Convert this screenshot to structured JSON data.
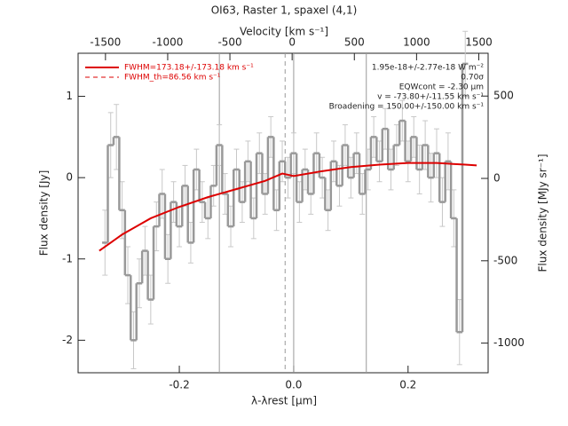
{
  "chart_data": {
    "type": "line",
    "title": "OI63, Raster 1, spaxel (4,1)",
    "x_label": "λ-λrest [μm]",
    "y_label": "Flux density [Jy]",
    "y2_label": "Flux density [MJy sr⁻¹]",
    "top_axis_label": "Velocity [km s⁻¹]",
    "xlim": [
      -0.377,
      0.34
    ],
    "ylim": [
      -2.4,
      1.53
    ],
    "y2lim": [
      -1180,
      760
    ],
    "top_xlim": [
      -1720,
      1575
    ],
    "xticks": [
      -0.2,
      {
        "value": 0,
        "label": "0.0"
      },
      0.2
    ],
    "yticks": [
      -2,
      -1,
      0,
      1
    ],
    "y2ticks": [
      -1000,
      -500,
      0,
      500
    ],
    "top_xticks": [
      -1500,
      -1000,
      -500,
      0,
      500,
      1000,
      1500
    ],
    "vlines": [
      -0.13,
      0.0,
      0.127
    ],
    "dashed_vlines": [
      -0.015
    ],
    "series": [
      {
        "color": "#999999",
        "x": [
          -0.33,
          -0.32,
          -0.31,
          -0.3,
          -0.29,
          -0.28,
          -0.27,
          -0.26,
          -0.25,
          -0.24,
          -0.23,
          -0.22,
          -0.21,
          -0.2,
          -0.19,
          -0.18,
          -0.17,
          -0.16,
          -0.15,
          -0.14,
          -0.13,
          -0.12,
          -0.11,
          -0.1,
          -0.09,
          -0.08,
          -0.07,
          -0.06,
          -0.05,
          -0.04,
          -0.03,
          -0.02,
          -0.01,
          0.0,
          0.01,
          0.02,
          0.03,
          0.04,
          0.05,
          0.06,
          0.07,
          0.08,
          0.09,
          0.1,
          0.11,
          0.12,
          0.13,
          0.14,
          0.15,
          0.16,
          0.17,
          0.18,
          0.19,
          0.2,
          0.21,
          0.22,
          0.23,
          0.24,
          0.25,
          0.26,
          0.27,
          0.28,
          0.29,
          0.3
        ],
        "values": [
          -0.8,
          0.4,
          0.5,
          -0.4,
          -1.2,
          -2.0,
          -1.3,
          -0.9,
          -1.5,
          -0.6,
          -0.2,
          -1.0,
          -0.3,
          -0.6,
          -0.1,
          -0.8,
          0.1,
          -0.3,
          -0.5,
          -0.1,
          0.4,
          -0.2,
          -0.6,
          0.1,
          -0.3,
          0.2,
          -0.5,
          0.3,
          -0.2,
          0.5,
          -0.4,
          0.2,
          0.0,
          0.3,
          -0.3,
          0.1,
          -0.2,
          0.3,
          0.0,
          -0.4,
          0.2,
          -0.1,
          0.4,
          0.0,
          0.3,
          -0.2,
          0.1,
          0.5,
          0.2,
          0.6,
          0.1,
          0.4,
          0.7,
          0.2,
          0.5,
          0.1,
          0.4,
          0.0,
          0.3,
          -0.3,
          0.2,
          -0.5,
          -1.9,
          1.4
        ],
        "errors": [
          0.4,
          0.4,
          0.4,
          0.35,
          0.35,
          0.35,
          0.3,
          0.3,
          0.3,
          0.3,
          0.3,
          0.3,
          0.25,
          0.25,
          0.25,
          0.25,
          0.25,
          0.25,
          0.25,
          0.25,
          0.25,
          0.25,
          0.25,
          0.25,
          0.25,
          0.25,
          0.25,
          0.25,
          0.25,
          0.25,
          0.25,
          0.25,
          0.25,
          0.25,
          0.25,
          0.25,
          0.25,
          0.25,
          0.25,
          0.25,
          0.25,
          0.25,
          0.25,
          0.25,
          0.25,
          0.25,
          0.25,
          0.25,
          0.25,
          0.25,
          0.25,
          0.25,
          0.25,
          0.25,
          0.25,
          0.3,
          0.3,
          0.3,
          0.3,
          0.3,
          0.35,
          0.35,
          0.4,
          0.4
        ]
      },
      {
        "name": "FWHM=173.18+/-173.18 km s⁻¹",
        "color": "#dd0000",
        "x": [
          -0.34,
          -0.3,
          -0.25,
          -0.2,
          -0.15,
          -0.1,
          -0.05,
          -0.02,
          0.0,
          0.05,
          0.1,
          0.15,
          0.2,
          0.25,
          0.3,
          0.32
        ],
        "values": [
          -0.9,
          -0.7,
          -0.5,
          -0.36,
          -0.24,
          -0.14,
          -0.04,
          0.05,
          0.02,
          0.08,
          0.13,
          0.16,
          0.18,
          0.18,
          0.16,
          0.15
        ]
      }
    ],
    "legend_extra": {
      "name": "FWHM_th=86.56 km s⁻¹",
      "color": "#dd0000"
    },
    "annotations": [
      "1.95e-18+/-2.77e-18 W m⁻²",
      "0.70σ",
      "EQWcont = -2.30 μm",
      "v = -73.80+/-11.55 km s⁻¹",
      "Broadening = 150.00+/-150.00 km s⁻¹"
    ]
  }
}
